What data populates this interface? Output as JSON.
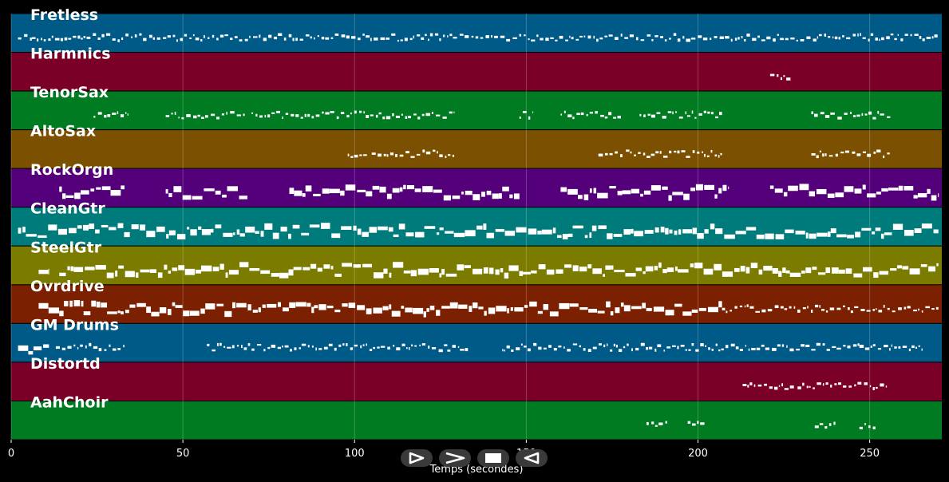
{
  "chart_data": {
    "type": "piano-roll",
    "xlabel": "Temps (secondes)",
    "xlim": [
      0,
      271
    ],
    "xticks": [
      0,
      50,
      100,
      150,
      200,
      250
    ],
    "grid": true,
    "tracks": [
      {
        "name": "Fretless",
        "color": "#005a87",
        "active": [
          [
            2,
            6,
            "thin"
          ],
          [
            6,
            270,
            "thin"
          ]
        ]
      },
      {
        "name": "Harmnics",
        "color": "#7b0028",
        "active": [
          [
            221,
            227,
            "thin"
          ]
        ]
      },
      {
        "name": "TenorSax",
        "color": "#007b22",
        "active": [
          [
            24,
            34,
            "thin"
          ],
          [
            45,
            68,
            "thin"
          ],
          [
            70,
            95,
            "thin"
          ],
          [
            95,
            129,
            "thin"
          ],
          [
            148,
            152,
            "thin"
          ],
          [
            160,
            178,
            "thin"
          ],
          [
            183,
            207,
            "thin"
          ],
          [
            233,
            256,
            "thin"
          ]
        ]
      },
      {
        "name": "AltoSax",
        "color": "#7b5000",
        "active": [
          [
            98,
            104,
            "thin"
          ],
          [
            105,
            129,
            "thin"
          ],
          [
            171,
            178,
            "thin"
          ],
          [
            179,
            207,
            "thin"
          ],
          [
            233,
            256,
            "thin"
          ]
        ]
      },
      {
        "name": "RockOrgn",
        "color": "#55007b",
        "active": [
          [
            14,
            33,
            "thick"
          ],
          [
            45,
            69,
            "thick"
          ],
          [
            81,
            143,
            "thick"
          ],
          [
            143,
            148,
            "thick"
          ],
          [
            160,
            209,
            "thick"
          ],
          [
            221,
            270,
            "thick"
          ]
        ]
      },
      {
        "name": "CleanGtr",
        "color": "#007b7b",
        "active": [
          [
            2,
            270,
            "thick"
          ]
        ]
      },
      {
        "name": "SteelGtr",
        "color": "#7b7b00",
        "active": [
          [
            8,
            11,
            "thick"
          ],
          [
            14,
            149,
            "thick"
          ],
          [
            149,
            270,
            "thick"
          ]
        ]
      },
      {
        "name": "Ovrdrive",
        "color": "#7b2000",
        "active": [
          [
            8,
            14,
            "thick"
          ],
          [
            14,
            207,
            "thick"
          ],
          [
            207,
            270,
            "thin"
          ]
        ]
      },
      {
        "name": "GM Drums",
        "color": "#005a87",
        "active": [
          [
            2,
            11,
            "thick"
          ],
          [
            13,
            33,
            "thin"
          ],
          [
            57,
            127,
            "thin"
          ],
          [
            127,
            133,
            "thin"
          ],
          [
            143,
            247,
            "thin"
          ],
          [
            247,
            266,
            "thin"
          ]
        ]
      },
      {
        "name": "Distortd",
        "color": "#7b0028",
        "active": [
          [
            213,
            228,
            "thin"
          ],
          [
            229,
            255,
            "thin"
          ]
        ]
      },
      {
        "name": "AahChoir",
        "color": "#007b22",
        "active": [
          [
            185,
            191,
            "thin"
          ],
          [
            197,
            202,
            "thin"
          ],
          [
            234,
            240,
            "thin"
          ],
          [
            247,
            252,
            "thin"
          ]
        ]
      }
    ]
  },
  "controls": [
    {
      "label": "play",
      "icon": "play-icon"
    },
    {
      "label": "forward",
      "icon": "chevron-right-icon"
    },
    {
      "label": "stop",
      "icon": "stop-icon"
    },
    {
      "label": "back",
      "icon": "rewind-icon"
    }
  ]
}
